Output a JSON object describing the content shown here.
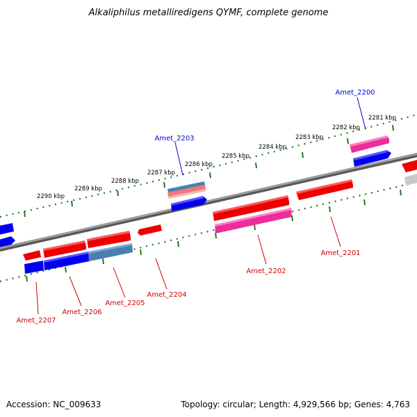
{
  "title": "Alkaliphilus metalliredigens QYMF, complete genome",
  "accession_text": "Accession: NC_009633",
  "summary_text": "Topology: circular; Length: 4,929,566 bp; Genes: 4,763",
  "colors": {
    "forward_gene": "#ee0000",
    "reverse_gene": "#0000ee",
    "forward_label": "#cc0000",
    "reverse_label": "#0000cc",
    "pink_gene": "#ee2d9c",
    "steel_gene": "#4a7fb0",
    "salmon_gene": "#ee7a7a",
    "gray_gene": "#c8c8c8",
    "backbone": "#808080",
    "tick": "#1a7a1a"
  },
  "scale_labels": [
    "2290 kbp",
    "2289 kbp",
    "2288 kbp",
    "2287 kbp",
    "2286 kbp",
    "2285 kbp",
    "2284 kbp",
    "2283 kbp",
    "2282 kbp",
    "2281 kbp"
  ],
  "gene_labels": {
    "amet_2200": "Amet_2200",
    "amet_2201": "Amet_2201",
    "amet_2202": "Amet_2202",
    "amet_2203": "Amet_2203",
    "amet_2204": "Amet_2204",
    "amet_2205": "Amet_2205",
    "amet_2206": "Amet_2206",
    "amet_2207": "Amet_2207"
  }
}
